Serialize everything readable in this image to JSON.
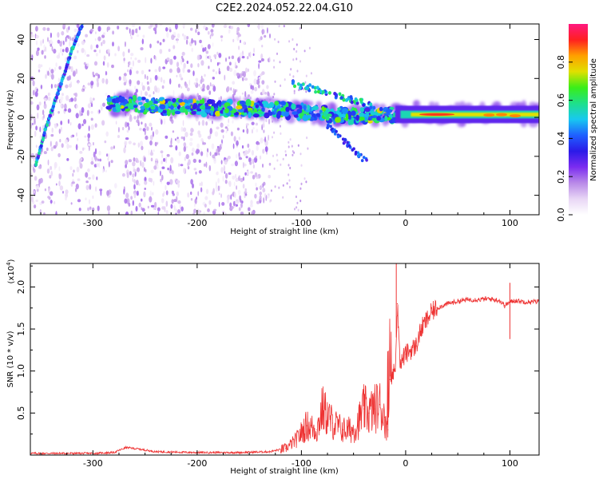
{
  "figure_title": "C2E2.2024.052.22.04.G10",
  "colors": {
    "snr_line": "#ee3333",
    "colorbar_stops": [
      "#ffffff",
      "#e8d6f5",
      "#b98ae8",
      "#7b2cf0",
      "#2b1ae8",
      "#1f60ff",
      "#18c8f0",
      "#1ee08a",
      "#3aee18",
      "#e0e000",
      "#ffa000",
      "#ff2020",
      "#ff1880"
    ]
  },
  "chart_data": [
    {
      "type": "heatmap",
      "title": "",
      "xlabel": "Height of straight line (km)",
      "ylabel": "Frequency (Hz)",
      "xlim": [
        -360,
        128
      ],
      "ylim": [
        -50,
        48
      ],
      "xticks": [
        -300,
        -200,
        -100,
        0,
        100
      ],
      "xtick_labels": [
        "-300",
        "-200",
        "-100",
        "0",
        "100"
      ],
      "yticks": [
        -40,
        -20,
        0,
        20,
        40
      ],
      "ytick_labels": [
        "-40",
        "-20",
        "0",
        "20",
        "40"
      ],
      "colorbar": {
        "label": "Normalized spectral amplitude",
        "range": [
          0,
          1
        ],
        "ticks": [
          0.0,
          0.2,
          0.4,
          0.6,
          0.8
        ],
        "tick_labels": [
          "0.0",
          "0.2",
          "0.4",
          "0.6",
          "0.8"
        ]
      },
      "features": [
        {
          "name": "main-signal-band",
          "x": [
            -285,
            -200,
            -120,
            -60,
            -20,
            0,
            60,
            128
          ],
          "y": [
            7,
            5,
            4,
            1,
            1,
            2,
            1.5,
            2
          ],
          "peak_amplitude": 0.9
        },
        {
          "name": "diagonal-streak",
          "x": [
            -355,
            -345,
            -330,
            -320,
            -310
          ],
          "y": [
            -25,
            -5,
            18,
            35,
            48
          ],
          "peak_amplitude": 0.6
        },
        {
          "name": "noise-region",
          "x_range": [
            -360,
            -130
          ],
          "y_range": [
            -50,
            48
          ],
          "amplitude": 0.2
        }
      ]
    },
    {
      "type": "line",
      "title": "",
      "xlabel": "Height of straight line (km)",
      "ylabel": "SNR (10 * v/v)",
      "y_scale_note": "(x10⁴)",
      "y_scale_exponent": "4",
      "xlim": [
        -360,
        128
      ],
      "ylim": [
        0,
        2.28
      ],
      "xticks": [
        -300,
        -200,
        -100,
        0,
        100
      ],
      "xtick_labels": [
        "-300",
        "-200",
        "-100",
        "0",
        "100"
      ],
      "yticks": [
        0.5,
        1.0,
        1.5,
        2.0
      ],
      "ytick_labels": [
        "0.5",
        "1.0",
        "1.5",
        "2.0"
      ],
      "series": [
        {
          "x": [
            -360,
            -340,
            -300,
            -280,
            -268,
            -255,
            -240,
            -200,
            -160,
            -130,
            -115,
            -105,
            -95,
            -85,
            -80,
            -70,
            -60,
            -50,
            -45,
            -40,
            -35,
            -30,
            -25,
            -20,
            -17,
            -15,
            -13,
            -10,
            -8,
            -5,
            -3,
            0,
            5,
            10,
            15,
            20,
            25,
            30,
            40,
            50,
            60,
            70,
            80,
            90,
            95,
            100,
            105,
            110,
            120,
            128
          ],
          "y": [
            0.02,
            0.02,
            0.02,
            0.03,
            0.09,
            0.07,
            0.04,
            0.03,
            0.03,
            0.04,
            0.08,
            0.18,
            0.35,
            0.3,
            0.55,
            0.38,
            0.3,
            0.3,
            0.4,
            0.55,
            0.5,
            0.55,
            0.6,
            0.45,
            0.3,
            0.9,
            0.95,
            1.0,
            1.8,
            1.05,
            1.15,
            1.2,
            1.25,
            1.3,
            1.5,
            1.6,
            1.7,
            1.75,
            1.8,
            1.83,
            1.85,
            1.85,
            1.86,
            1.84,
            1.78,
            1.82,
            1.84,
            1.83,
            1.82,
            1.83
          ]
        }
      ]
    }
  ]
}
